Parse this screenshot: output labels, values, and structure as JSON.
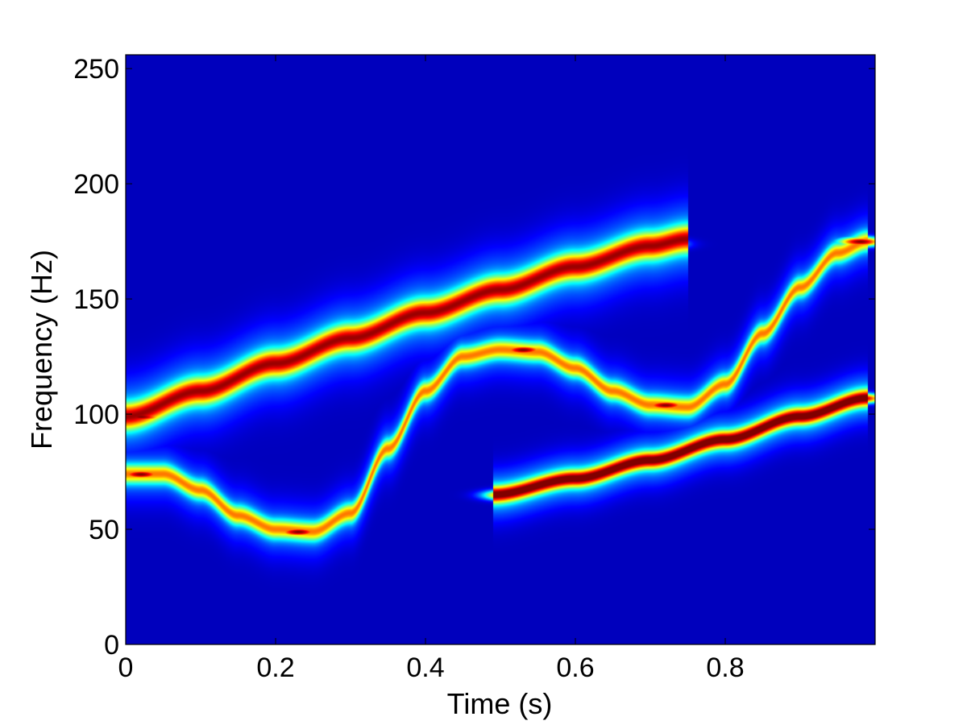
{
  "chart_data": {
    "type": "heatmap",
    "title": "",
    "xlabel": "Time (s)",
    "ylabel": "Frequency (Hz)",
    "xlim": [
      0,
      1
    ],
    "ylim": [
      0,
      256
    ],
    "x_ticks": [
      0,
      0.2,
      0.4,
      0.6,
      0.8
    ],
    "x_tick_labels": [
      "0",
      "0.2",
      "0.4",
      "0.6",
      "0.8"
    ],
    "y_ticks": [
      0,
      50,
      100,
      150,
      200,
      250
    ],
    "y_tick_labels": [
      "0",
      "50",
      "100",
      "150",
      "200",
      "250"
    ],
    "grid": false,
    "colormap": "jet",
    "background_color": "#00008f",
    "ridges": [
      {
        "points": [
          [
            0.0,
            99
          ],
          [
            0.1,
            110
          ],
          [
            0.2,
            122
          ],
          [
            0.3,
            133
          ],
          [
            0.4,
            144
          ],
          [
            0.5,
            154
          ],
          [
            0.6,
            164
          ],
          [
            0.7,
            173
          ],
          [
            0.75,
            176
          ]
        ],
        "intensity": 0.72,
        "width_hz": 5.5
      },
      {
        "points": [
          [
            0.0,
            74
          ],
          [
            0.05,
            74
          ],
          [
            0.1,
            67
          ],
          [
            0.15,
            56
          ],
          [
            0.2,
            50
          ],
          [
            0.25,
            49
          ],
          [
            0.3,
            57
          ],
          [
            0.35,
            85
          ],
          [
            0.4,
            110
          ],
          [
            0.45,
            125
          ],
          [
            0.5,
            128
          ],
          [
            0.55,
            127
          ],
          [
            0.6,
            120
          ],
          [
            0.65,
            110
          ],
          [
            0.7,
            104
          ],
          [
            0.75,
            103
          ],
          [
            0.8,
            113
          ],
          [
            0.85,
            135
          ],
          [
            0.9,
            155
          ],
          [
            0.95,
            170
          ],
          [
            0.99,
            175
          ]
        ],
        "intensity": 0.55,
        "width_hz": 4
      },
      {
        "points": [
          [
            0.49,
            65
          ],
          [
            0.6,
            72
          ],
          [
            0.7,
            80
          ],
          [
            0.8,
            89
          ],
          [
            0.9,
            99
          ],
          [
            0.99,
            107
          ]
        ],
        "intensity": 0.8,
        "width_hz": 3.5
      }
    ],
    "hot_spots": [
      {
        "t": 0.02,
        "f": 74,
        "intensity": 1.0
      },
      {
        "t": 0.02,
        "f": 99,
        "intensity": 1.0
      },
      {
        "t": 0.23,
        "f": 49,
        "intensity": 1.0
      },
      {
        "t": 0.53,
        "f": 128,
        "intensity": 1.0
      },
      {
        "t": 0.51,
        "f": 65,
        "intensity": 1.0
      },
      {
        "t": 0.72,
        "f": 104,
        "intensity": 1.0
      },
      {
        "t": 0.71,
        "f": 174,
        "intensity": 0.95
      },
      {
        "t": 0.8,
        "f": 89,
        "intensity": 0.95
      },
      {
        "t": 0.98,
        "f": 107,
        "intensity": 1.0
      },
      {
        "t": 0.98,
        "f": 175,
        "intensity": 1.0
      }
    ]
  }
}
